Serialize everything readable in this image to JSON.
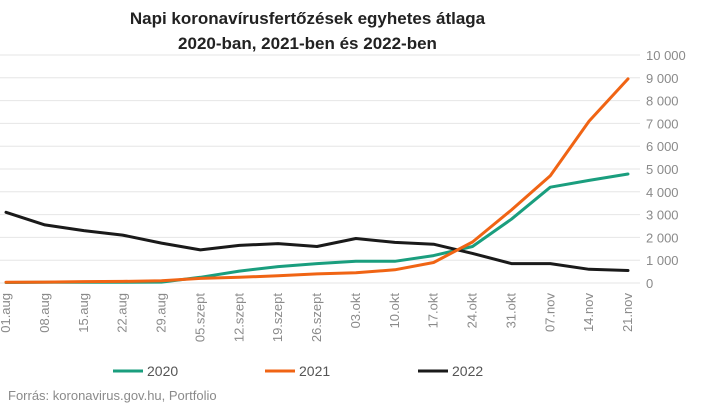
{
  "title_line1": "Napi koronavírusfertőzések egyhetes átlaga",
  "title_line2": "2020-ban, 2021-ben és 2022-ben",
  "source": "Forrás: koronavirus.gov.hu, Portfolio",
  "colors": {
    "2020": "#1a9e7e",
    "2021": "#f06414",
    "2022": "#1a1a1a",
    "grid": "#e6e6e6"
  },
  "chart_data": {
    "type": "line",
    "title": "Napi koronavírusfertőzések egyhetes átlaga 2020-ban, 2021-ben és 2022-ben",
    "categories": [
      "01.aug",
      "08.aug",
      "15.aug",
      "22.aug",
      "29.aug",
      "05.szept",
      "12.szept",
      "19.szept",
      "26.szept",
      "03.okt",
      "10.okt",
      "17.okt",
      "24.okt",
      "31.okt",
      "07.nov",
      "14.nov",
      "21.nov"
    ],
    "ylim": [
      0,
      10000
    ],
    "yticks": [
      0,
      1000,
      2000,
      3000,
      4000,
      5000,
      6000,
      7000,
      8000,
      9000,
      10000
    ],
    "ytick_labels": [
      "0",
      "1 000",
      "2 000",
      "3 000",
      "4 000",
      "5 000",
      "6 000",
      "7 000",
      "8 000",
      "9 000",
      "10 000"
    ],
    "grid": true,
    "legend_position": "bottom",
    "series": [
      {
        "name": "2020",
        "values": [
          20,
          30,
          30,
          30,
          40,
          250,
          520,
          720,
          850,
          950,
          950,
          1200,
          1600,
          2800,
          4200,
          4500,
          4780
        ]
      },
      {
        "name": "2021",
        "values": [
          30,
          40,
          60,
          70,
          100,
          200,
          250,
          320,
          400,
          450,
          580,
          900,
          1800,
          3200,
          4700,
          7100,
          8950
        ]
      },
      {
        "name": "2022",
        "values": [
          3100,
          2550,
          2300,
          2100,
          1750,
          1450,
          1650,
          1730,
          1600,
          1950,
          1780,
          1700,
          1300,
          850,
          850,
          600,
          550
        ]
      }
    ]
  }
}
